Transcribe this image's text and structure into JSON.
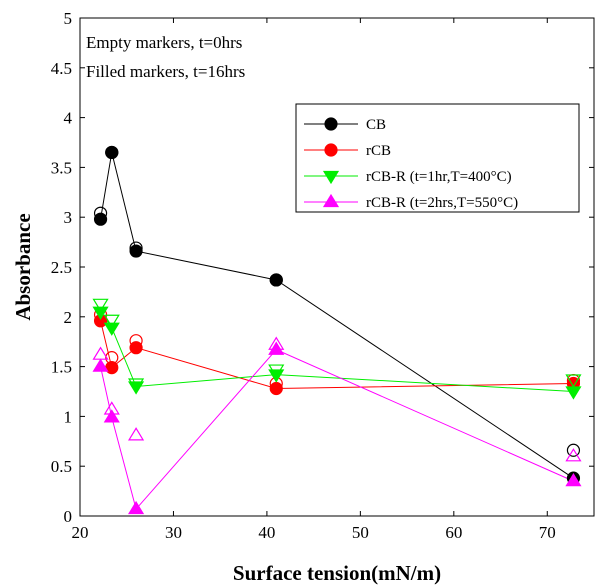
{
  "chart_data": {
    "type": "line",
    "xlabel": "Surface tension(mN/m)",
    "ylabel": "Absorbance",
    "xlim": [
      20,
      75
    ],
    "ylim": [
      0,
      5
    ],
    "xticks": [
      "20",
      "30",
      "40",
      "50",
      "60",
      "70"
    ],
    "yticks": [
      "0",
      "0.5",
      "1",
      "1.5",
      "2",
      "2.5",
      "3",
      "3.5",
      "4",
      "4.5",
      "5"
    ],
    "grid": false,
    "legend_position": "top-right",
    "annotations": [
      "Empty markers, t=0hrs",
      "Filled markers, t=16hrs"
    ],
    "series": [
      {
        "name": "CB",
        "color": "#000000",
        "marker": "circle",
        "t0": [
          [
            22.2,
            3.04
          ],
          [
            23.4,
            3.65
          ],
          [
            26.0,
            2.69
          ],
          [
            41.0,
            2.37
          ],
          [
            72.8,
            0.66
          ]
        ],
        "t16": [
          [
            22.2,
            2.98
          ],
          [
            23.4,
            3.65
          ],
          [
            26.0,
            2.66
          ],
          [
            41.0,
            2.37
          ],
          [
            72.8,
            0.38
          ]
        ]
      },
      {
        "name": "rCB",
        "color": "#ff0000",
        "marker": "circle",
        "t0": [
          [
            22.2,
            2.02
          ],
          [
            23.4,
            1.59
          ],
          [
            26.0,
            1.76
          ],
          [
            41.0,
            1.33
          ],
          [
            72.8,
            1.36
          ]
        ],
        "t16": [
          [
            22.2,
            1.96
          ],
          [
            23.4,
            1.49
          ],
          [
            26.0,
            1.69
          ],
          [
            41.0,
            1.28
          ],
          [
            72.8,
            1.33
          ]
        ]
      },
      {
        "name": "rCB-R (t=1hr,T=400°C)",
        "color": "#00ee00",
        "marker": "triangle-down",
        "t0": [
          [
            22.2,
            2.13
          ],
          [
            23.4,
            1.97
          ],
          [
            26.0,
            1.33
          ],
          [
            41.0,
            1.47
          ],
          [
            72.8,
            1.37
          ]
        ],
        "t16": [
          [
            22.2,
            2.05
          ],
          [
            23.4,
            1.89
          ],
          [
            26.0,
            1.3
          ],
          [
            41.0,
            1.42
          ],
          [
            72.8,
            1.25
          ]
        ]
      },
      {
        "name": "rCB-R (t=2hrs,T=550°C)",
        "color": "#ff00ff",
        "marker": "triangle-up",
        "t0": [
          [
            22.2,
            1.62
          ],
          [
            23.4,
            1.07
          ],
          [
            26.0,
            0.81
          ],
          [
            41.0,
            1.72
          ],
          [
            72.8,
            0.6
          ]
        ],
        "t16": [
          [
            22.2,
            1.5
          ],
          [
            23.4,
            0.99
          ],
          [
            26.0,
            0.07
          ],
          [
            41.0,
            1.67
          ],
          [
            72.8,
            0.35
          ]
        ]
      }
    ]
  }
}
